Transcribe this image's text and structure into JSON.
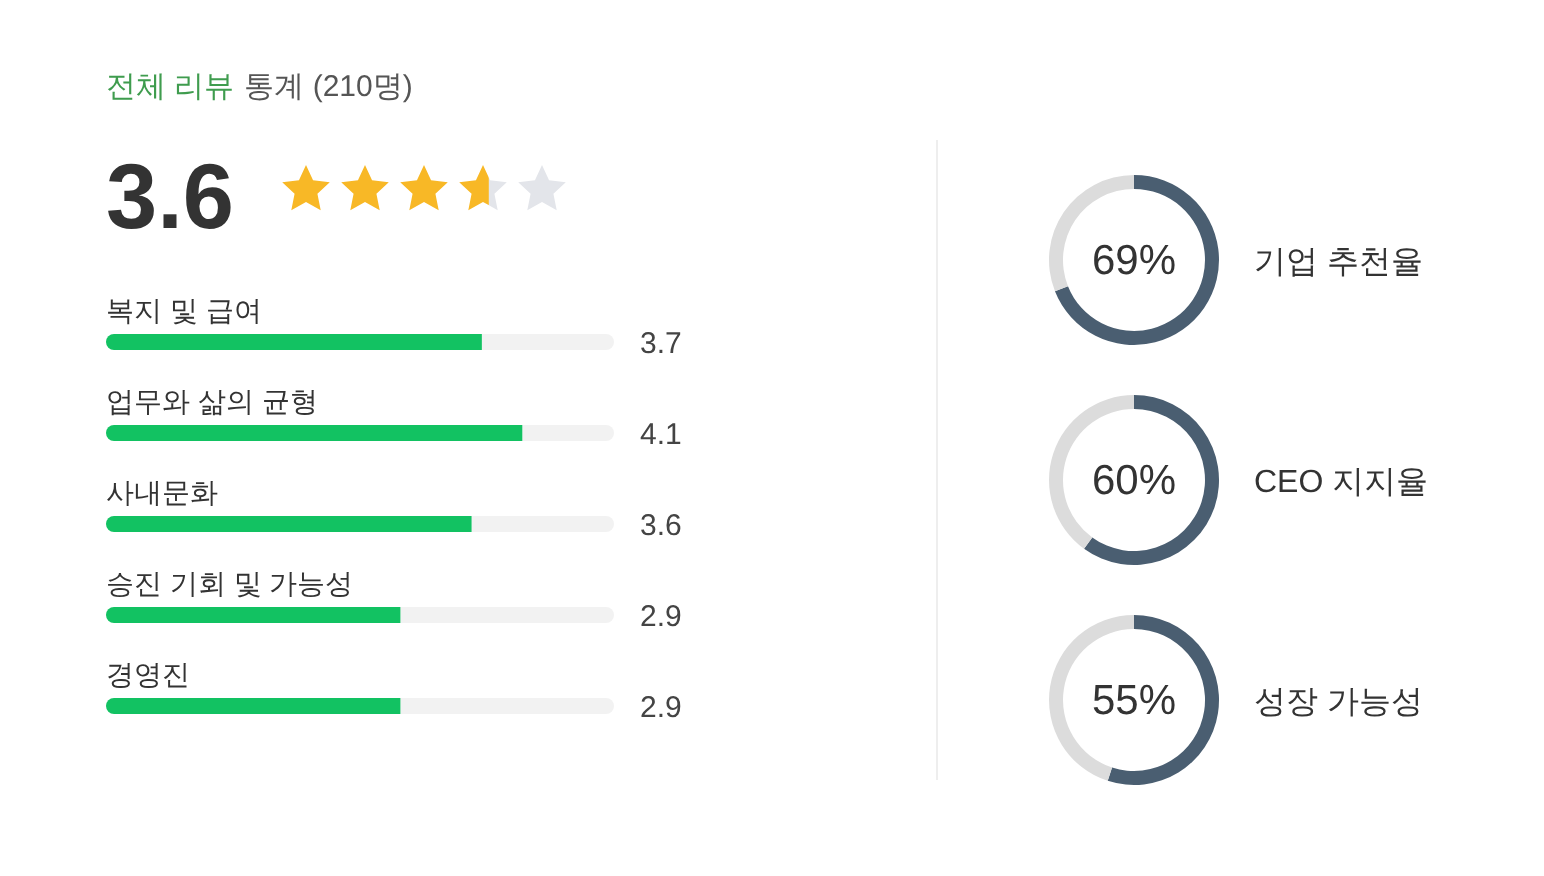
{
  "chart_data": [
    {
      "type": "other",
      "title": "전체 리뷰",
      "subtitle": "통계 (210명)",
      "values": [
        3.6
      ],
      "data_labels": true,
      "color": "#f8b826"
    },
    {
      "type": "bar",
      "orientation": "horizontal",
      "categories": [
        "복지 및 급여",
        "업무와 삶의 균형",
        "사내문화",
        "승진 기회 및 가능성",
        "경영진"
      ],
      "values": [
        3.7,
        4.1,
        3.6,
        2.9,
        2.9
      ],
      "xlim": [
        0,
        5
      ],
      "tick_labels": "y",
      "data_labels": true,
      "color": "#12c262"
    },
    {
      "type": "donut",
      "title": "기업 추천율",
      "categories": [
        null,
        null
      ],
      "values": [
        69,
        31
      ],
      "colors": [
        "#4a5e71",
        "#dcdcdc"
      ],
      "value_labels": [
        "69%",
        null
      ]
    },
    {
      "type": "donut",
      "title": "CEO 지지율",
      "categories": [
        null,
        null
      ],
      "values": [
        60,
        40
      ],
      "colors": [
        "#4a5e71",
        "#dcdcdc"
      ],
      "value_labels": [
        "60%",
        null
      ]
    },
    {
      "type": "donut",
      "title": "성장 가능성",
      "categories": [
        null,
        null
      ],
      "values": [
        55,
        45
      ],
      "colors": [
        "#4a5e71",
        "#dcdcdc"
      ],
      "value_labels": [
        "55%",
        null
      ]
    }
  ]
}
